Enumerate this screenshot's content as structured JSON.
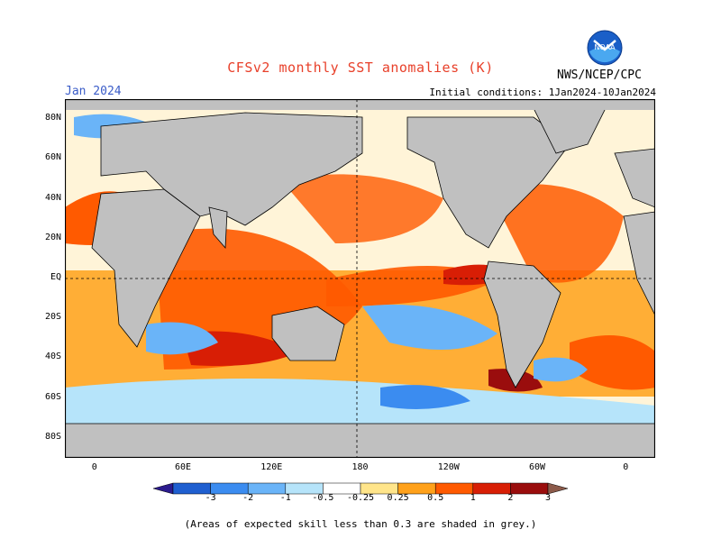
{
  "title": "CFSv2 monthly SST anomalies (K)",
  "month": "Jan 2024",
  "initial_conditions": "Initial conditions: 1Jan2024-10Jan2024",
  "agency": "NWS/NCEP/CPC",
  "logo_text": "NOAA",
  "footnote": "(Areas of expected skill less than 0.3 are shaded in grey.)",
  "lat_labels": [
    "80N",
    "60N",
    "40N",
    "20N",
    "EQ",
    "20S",
    "40S",
    "60S",
    "80S"
  ],
  "lat_values": [
    80,
    60,
    40,
    20,
    0,
    -20,
    -40,
    -60,
    -80
  ],
  "lon_labels": [
    "0",
    "60E",
    "120E",
    "180",
    "120W",
    "60W",
    "0"
  ],
  "lon_values": [
    0,
    60,
    120,
    180,
    240,
    300,
    360
  ],
  "map_extent": {
    "lon": [
      -20,
      380
    ],
    "lat": [
      -90,
      90
    ]
  },
  "colorbar": {
    "labels": [
      "-3",
      "-2",
      "-1",
      "-0.5",
      "-0.25",
      "0.25",
      "0.5",
      "1",
      "2",
      "3"
    ],
    "colors": [
      "#2b1b8e",
      "#1f5fd0",
      "#3b8cf0",
      "#6ab4f8",
      "#b6e4fa",
      "#ffffff",
      "#ffe58a",
      "#ffa11a",
      "#ff5a00",
      "#d81e05",
      "#9a0d0d",
      "#8c5a4a"
    ]
  },
  "colors": {
    "land": "#c0c0c0",
    "skill_mask": "#c8c8c8"
  }
}
